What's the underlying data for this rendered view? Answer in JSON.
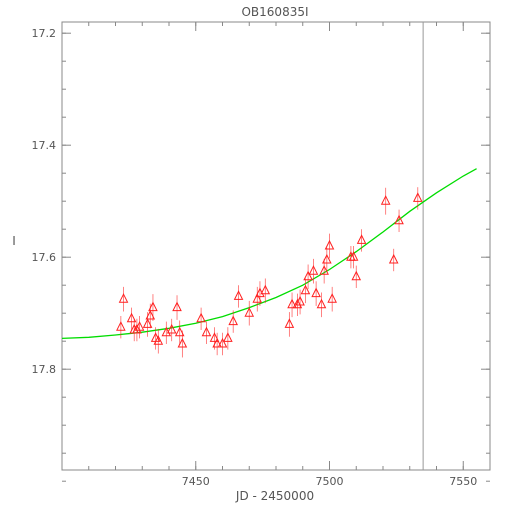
{
  "chart_data": {
    "type": "scatter",
    "title": "OB160835I",
    "xlabel": "JD - 2450000",
    "ylabel": "I",
    "xlim": [
      7400,
      7560
    ],
    "ylim": [
      17.98,
      17.18
    ],
    "y_inverted": true,
    "grid": false,
    "x_ticks": [
      7450,
      7500,
      7550
    ],
    "x_tick_labels": [
      "7450",
      "7500",
      "7550"
    ],
    "y_ticks": [
      17.2,
      17.4,
      17.6,
      17.8
    ],
    "y_tick_labels": [
      "17.2",
      "17.4",
      "17.6",
      "17.8"
    ],
    "vertical_line_x": 7535,
    "colors": {
      "points": "#ff2020",
      "model": "#00dd00",
      "axes": "#888888",
      "marker_line": "#999999"
    },
    "series": [
      {
        "marker": "triangle",
        "x": [
          7422,
          7423,
          7426,
          7427,
          7428,
          7429,
          7432,
          7433,
          7434,
          7435,
          7436,
          7439,
          7441,
          7443,
          7444,
          7445,
          7452,
          7454,
          7457,
          7458,
          7460,
          7462,
          7464,
          7466,
          7470,
          7473,
          7474,
          7476,
          7485,
          7486,
          7488,
          7489,
          7491,
          7492,
          7494,
          7495,
          7497,
          7498,
          7499,
          7500,
          7501,
          7508,
          7509,
          7510,
          7512,
          7521,
          7524,
          7526,
          7533
        ],
        "y": [
          17.725,
          17.675,
          17.71,
          17.73,
          17.73,
          17.725,
          17.72,
          17.705,
          17.69,
          17.745,
          17.75,
          17.735,
          17.73,
          17.69,
          17.735,
          17.755,
          17.71,
          17.735,
          17.745,
          17.755,
          17.755,
          17.745,
          17.715,
          17.67,
          17.7,
          17.675,
          17.665,
          17.66,
          17.72,
          17.685,
          17.685,
          17.68,
          17.66,
          17.635,
          17.625,
          17.665,
          17.685,
          17.625,
          17.605,
          17.58,
          17.675,
          17.6,
          17.6,
          17.635,
          17.57,
          17.5,
          17.605,
          17.535,
          17.495
        ],
        "errors": [
          0.02,
          0.022,
          0.02,
          0.02,
          0.02,
          0.02,
          0.022,
          0.022,
          0.024,
          0.02,
          0.022,
          0.02,
          0.02,
          0.022,
          0.022,
          0.024,
          0.02,
          0.02,
          0.02,
          0.02,
          0.02,
          0.02,
          0.02,
          0.02,
          0.022,
          0.022,
          0.022,
          0.022,
          0.022,
          0.022,
          0.02,
          0.022,
          0.022,
          0.022,
          0.022,
          0.022,
          0.022,
          0.022,
          0.022,
          0.022,
          0.022,
          0.02,
          0.02,
          0.02,
          0.02,
          0.024,
          0.02,
          0.02,
          0.02
        ]
      }
    ],
    "model": {
      "type": "line",
      "x": [
        7400,
        7410,
        7420,
        7430,
        7440,
        7450,
        7460,
        7470,
        7480,
        7490,
        7500,
        7510,
        7520,
        7530,
        7540,
        7550,
        7555
      ],
      "y": [
        17.745,
        17.743,
        17.739,
        17.734,
        17.727,
        17.718,
        17.706,
        17.69,
        17.672,
        17.65,
        17.622,
        17.59,
        17.555,
        17.518,
        17.485,
        17.455,
        17.442
      ]
    }
  }
}
